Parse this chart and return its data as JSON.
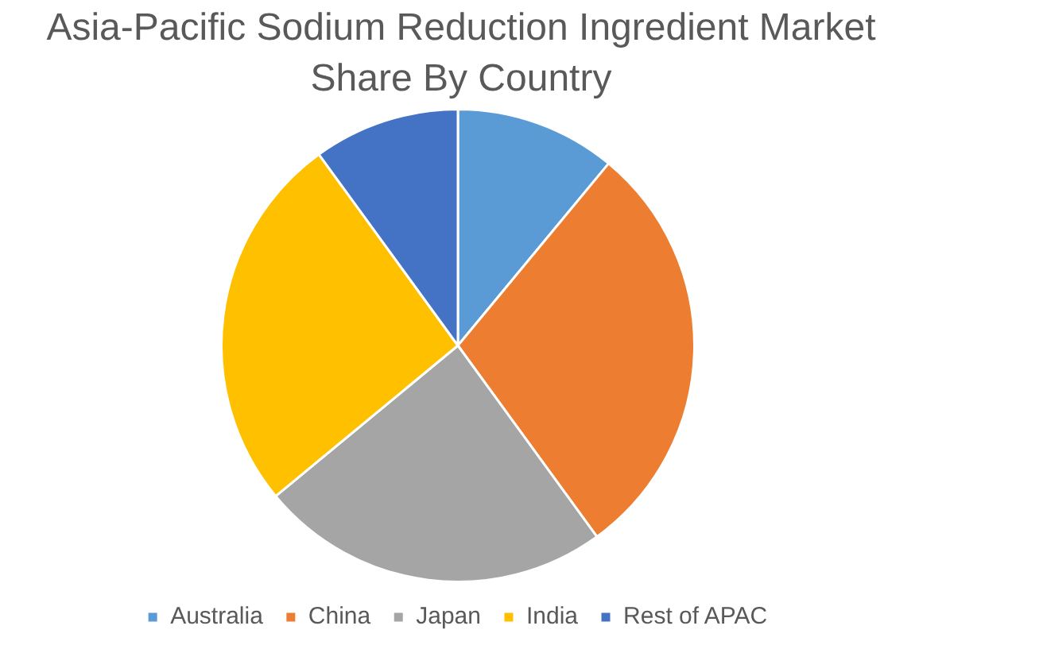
{
  "chart_data": {
    "type": "pie",
    "title": "Asia-Pacific Sodium Reduction Ingredient Market Share By Country",
    "categories": [
      "Australia",
      "China",
      "Japan",
      "India",
      "Rest of APAC"
    ],
    "values": [
      11,
      29,
      24,
      26,
      10
    ],
    "colors": [
      "#5b9bd5",
      "#ed7d31",
      "#a5a5a5",
      "#ffc000",
      "#4472c4"
    ],
    "legend": "bottom"
  }
}
